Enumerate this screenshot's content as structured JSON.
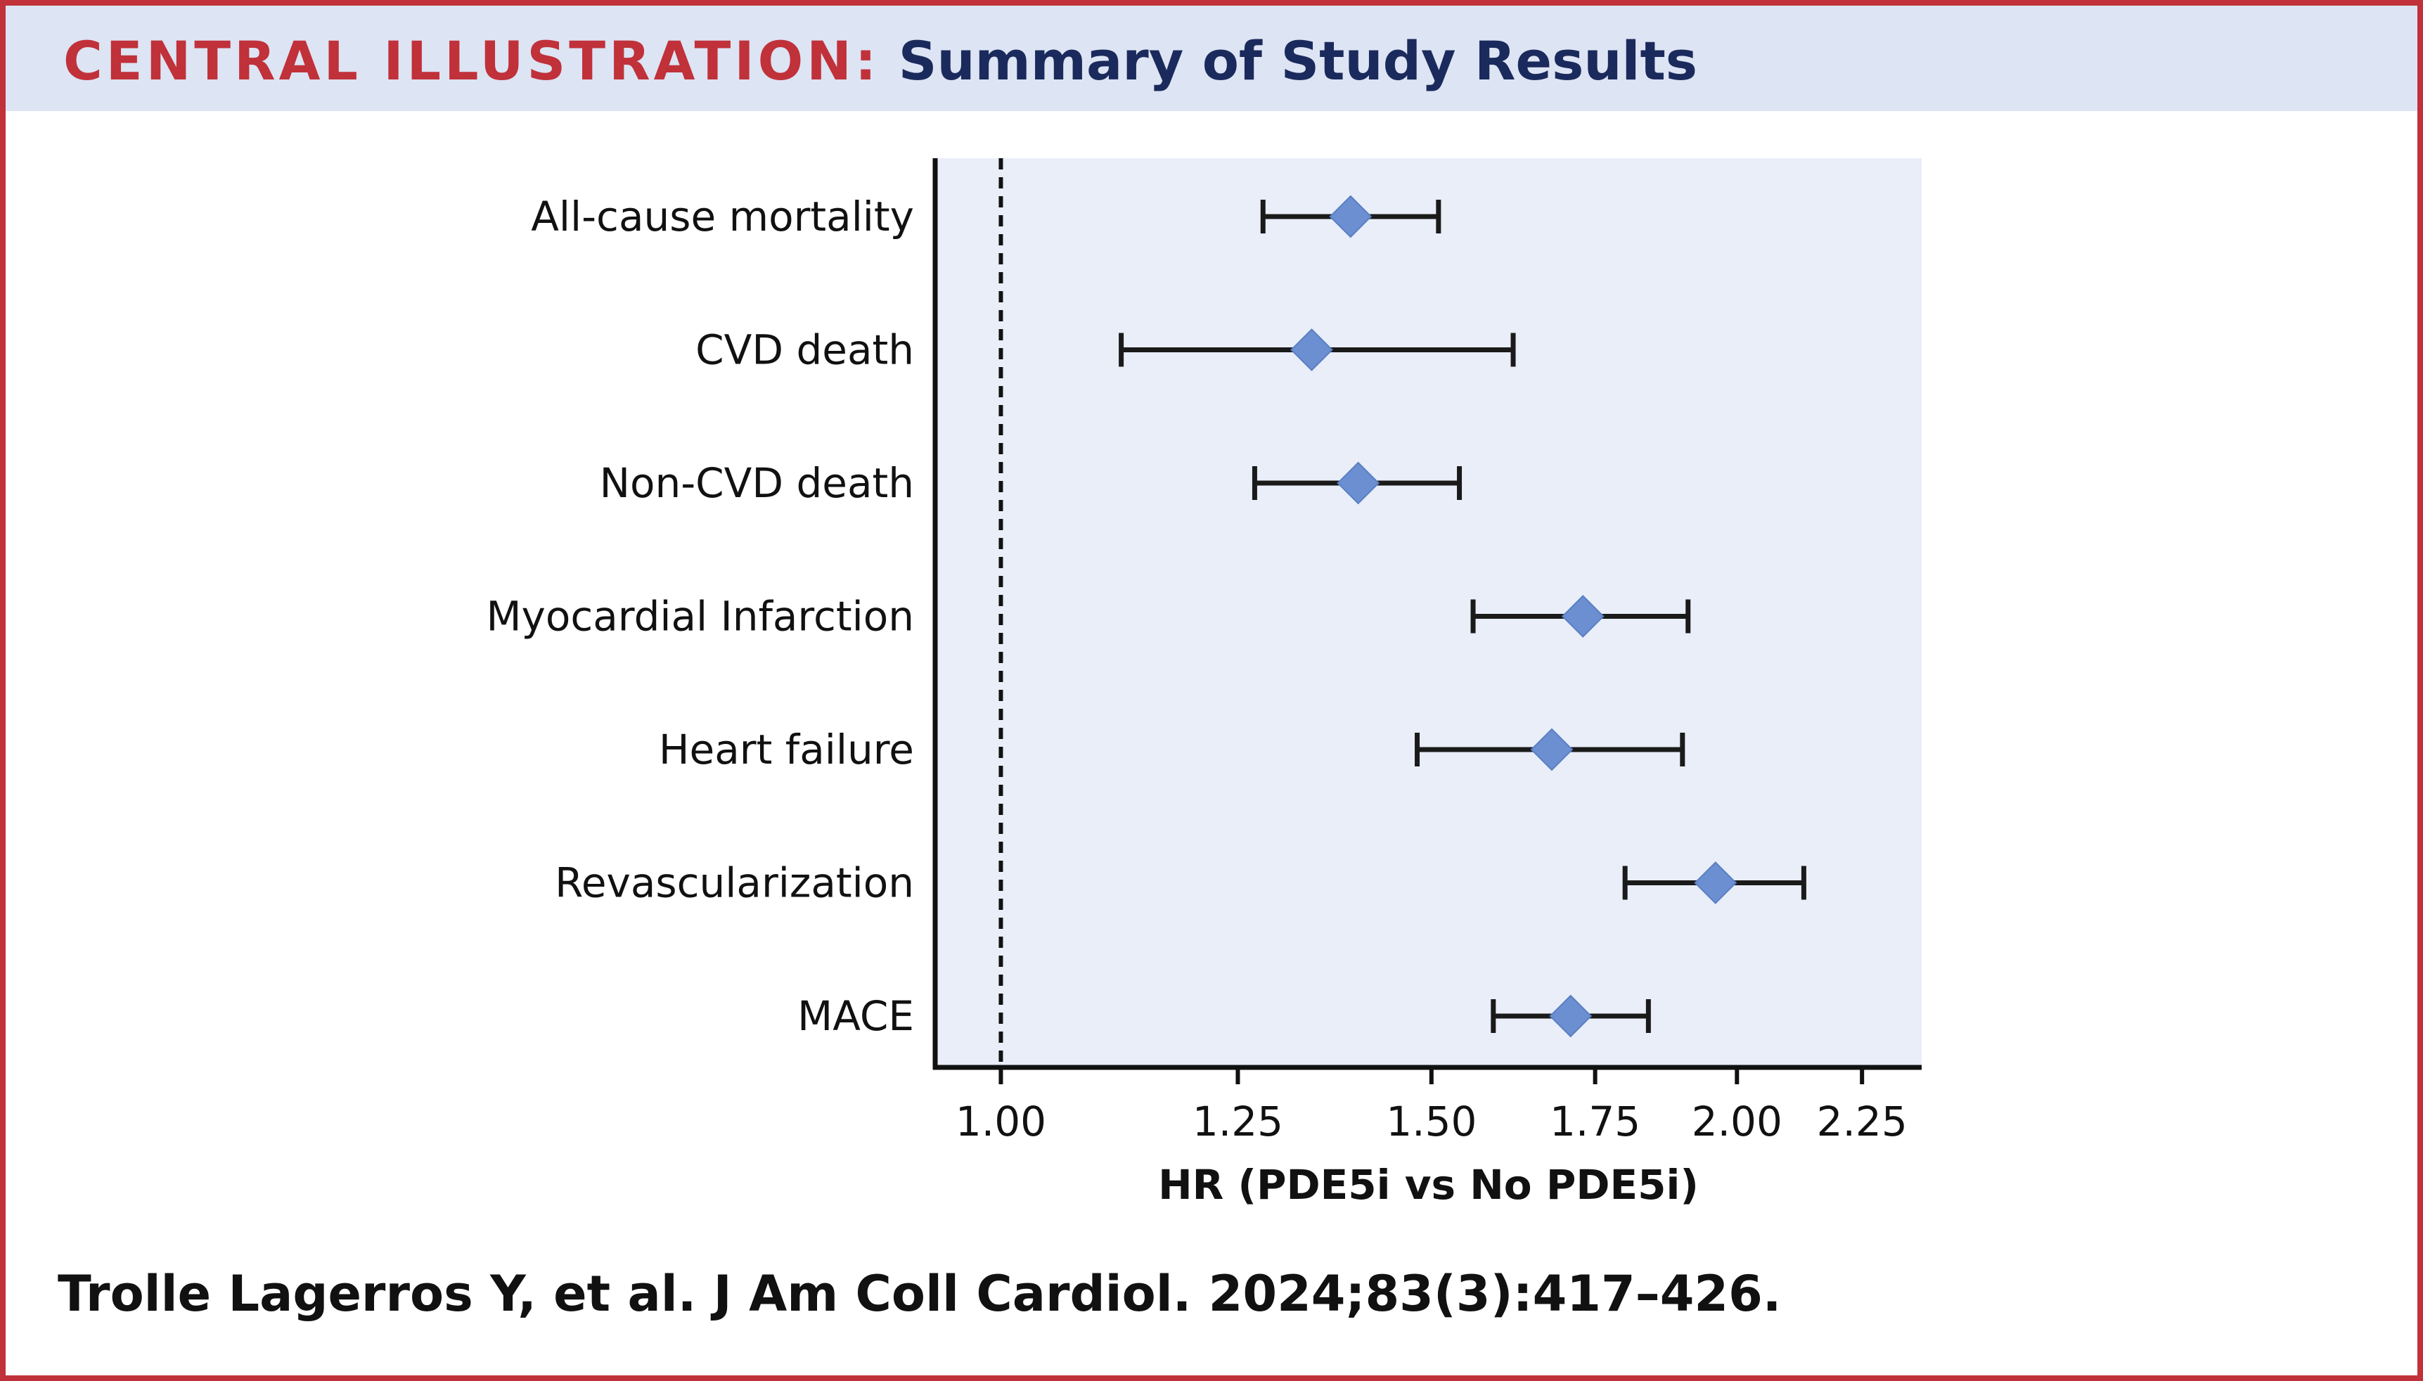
{
  "header": {
    "label": "CENTRAL ILLUSTRATION:",
    "title": "Summary of Study Results"
  },
  "citation": "Trolle Lagerros Y, et al. J Am Coll Cardiol. 2024;83(3):417–426.",
  "colors": {
    "frame": "#c0313a",
    "header_bg": "#dde4f3",
    "plot_bg": "#e9eef8",
    "marker": "#6b8fd1",
    "title_text": "#1b2a5c"
  },
  "chart_data": {
    "type": "scatter",
    "subtype": "forest-plot",
    "xlabel": "HR (PDE5i vs No PDE5i)",
    "xticks": [
      1.0,
      1.25,
      1.5,
      1.75,
      2.0,
      2.25
    ],
    "xtick_labels": [
      "1.00",
      "1.25",
      "1.50",
      "1.75",
      "2.00",
      "2.25"
    ],
    "xscale": "log",
    "xlim": [
      0.94,
      2.38
    ],
    "reference_line": 1.0,
    "grid": false,
    "categories": [
      "All-cause mortality",
      "CVD death",
      "Non-CVD death",
      "Myocardial Infarction",
      "Heart failure",
      "Revascularization",
      "MACE"
    ],
    "series": [
      {
        "hr": [
          1.39,
          1.34,
          1.4,
          1.73,
          1.68,
          1.96,
          1.71
        ],
        "lower": [
          1.28,
          1.12,
          1.27,
          1.56,
          1.48,
          1.8,
          1.59
        ],
        "upper": [
          1.51,
          1.62,
          1.54,
          1.91,
          1.9,
          2.13,
          1.84
        ]
      }
    ]
  }
}
